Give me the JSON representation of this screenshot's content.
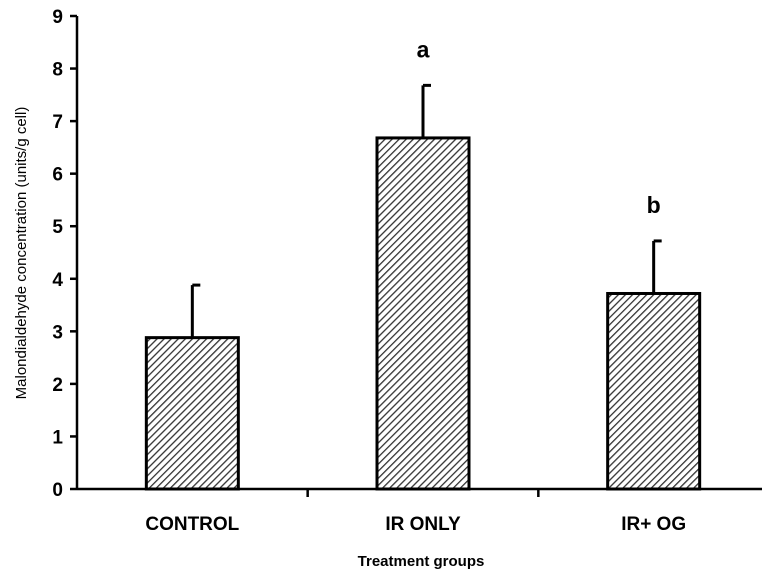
{
  "chart_data": {
    "type": "bar",
    "xlabel": "Treatment groups",
    "ylabel": "Malondialdehyde concentration (units/g cell)",
    "ylim": [
      0,
      9
    ],
    "yticks": [
      "0",
      "1",
      "2",
      "3",
      "4",
      "5",
      "6",
      "7",
      "8",
      "9"
    ],
    "grid": false,
    "categories": [
      "CONTROL",
      "IR ONLY",
      "IR+ OG"
    ],
    "values": [
      2.88,
      6.68,
      3.72
    ],
    "error_bars": [
      1.0,
      1.0,
      1.0
    ],
    "annotations": [
      "",
      "a",
      "b"
    ],
    "bar_fill": "diagonal-hatch",
    "bar_color": "#000000"
  }
}
